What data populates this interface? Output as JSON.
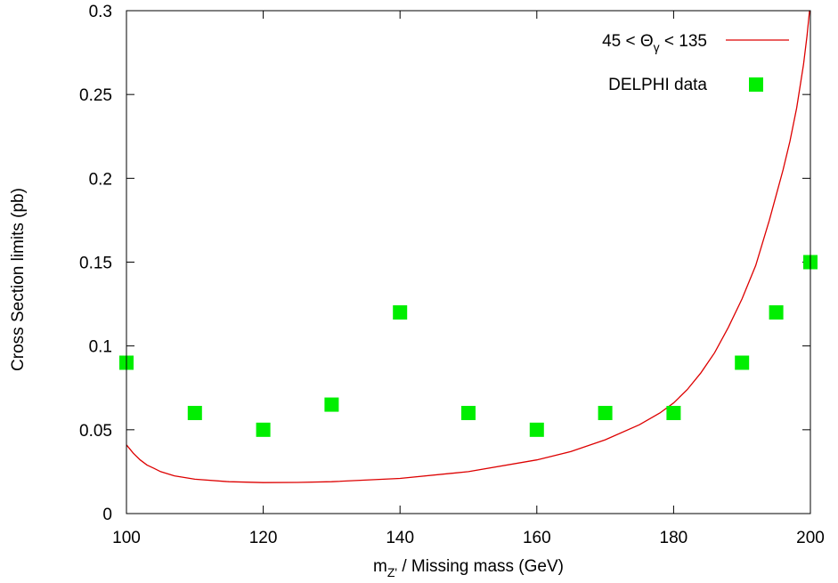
{
  "chart_data": {
    "type": "scatter",
    "xlabel_main": "m",
    "xlabel_sub": "Z'",
    "xlabel_rest": " / Missing mass    (GeV)",
    "ylabel": "Cross Section limits  (pb)",
    "xlim": [
      100,
      200
    ],
    "ylim": [
      0,
      0.3
    ],
    "xticks": [
      100,
      120,
      140,
      160,
      180,
      200
    ],
    "yticks": [
      0,
      0.05,
      0.1,
      0.15,
      0.2,
      0.25,
      0.3
    ],
    "ytick_labels": [
      "0",
      "0.05",
      "0.1",
      "0.15",
      "0.2",
      "0.25",
      "0.3"
    ],
    "grid": false,
    "legend_position": "top-right",
    "series": [
      {
        "name": "45 < Θγ < 135",
        "legend_main": "45 < Θ",
        "legend_sub": "γ",
        "legend_rest": " < 135",
        "kind": "line",
        "color": "#dd0000",
        "x": [
          100,
          101,
          102,
          103,
          104,
          105,
          107,
          110,
          115,
          120,
          125,
          130,
          140,
          150,
          160,
          165,
          170,
          175,
          178,
          180,
          182,
          184,
          186,
          188,
          190,
          192,
          194,
          195,
          196,
          197,
          198,
          199,
          199.5,
          200
        ],
        "y": [
          0.041,
          0.036,
          0.032,
          0.029,
          0.027,
          0.025,
          0.0225,
          0.0205,
          0.019,
          0.0185,
          0.0186,
          0.019,
          0.021,
          0.025,
          0.032,
          0.037,
          0.044,
          0.053,
          0.06,
          0.066,
          0.074,
          0.084,
          0.096,
          0.111,
          0.128,
          0.148,
          0.175,
          0.19,
          0.205,
          0.222,
          0.242,
          0.268,
          0.285,
          0.305
        ]
      },
      {
        "name": "DELPHI data",
        "kind": "points",
        "color": "#00ee00",
        "x": [
          100,
          110,
          120,
          130,
          140,
          150,
          160,
          170,
          180,
          190,
          195,
          200
        ],
        "y": [
          0.09,
          0.06,
          0.05,
          0.065,
          0.12,
          0.06,
          0.05,
          0.06,
          0.06,
          0.09,
          0.12,
          0.15
        ]
      }
    ]
  }
}
